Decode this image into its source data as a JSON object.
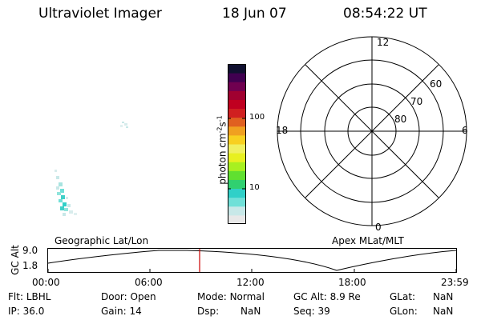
{
  "header": {
    "instrument": "Ultraviolet Imager",
    "date": "18 Jun 07",
    "time": "08:54:22 UT"
  },
  "colorbar": {
    "label": "photon cm",
    "label_exp1": "-2",
    "label_s": "s",
    "label_exp2": "-1",
    "ticks": [
      "100",
      "10"
    ],
    "colors": [
      "#e8e8e8",
      "#c8e8e8",
      "#70e0d8",
      "#30d0c8",
      "#30d070",
      "#60e030",
      "#a8f020",
      "#e8f020",
      "#f0f060",
      "#f8d020",
      "#f0a020",
      "#e06020",
      "#d02020",
      "#c00020",
      "#a00030",
      "#700050",
      "#400050",
      "#101030"
    ]
  },
  "polar_plot": {
    "mlt_labels": [
      "12",
      "18",
      "6",
      "0"
    ],
    "lat_labels": [
      "60",
      "70",
      "80"
    ]
  },
  "timeline": {
    "left_title": "Geographic Lat/Lon",
    "right_title": "Apex MLat/MLT",
    "axis_label": "GC Alt",
    "y_top": "9.0",
    "y_bottom": "1.8",
    "x_ticks": [
      "00:00",
      "06:00",
      "12:00",
      "18:00",
      "23:59"
    ],
    "marker_color": "#cc0000"
  },
  "info": {
    "flt_label": "Flt:",
    "flt_value": "LBHL",
    "door_label": "Door:",
    "door_value": "Open",
    "mode_label": "Mode:",
    "mode_value": "Normal",
    "gcalt_label": "GC Alt:",
    "gcalt_value": "8.9 Re",
    "glat_label": "GLat:",
    "glat_value": "NaN",
    "ip_label": "IP:",
    "ip_value": "36.0",
    "gain_label": "Gain:",
    "gain_value": "14",
    "dsp_label": "Dsp:",
    "dsp_value": "NaN",
    "seq_label": "Seq:",
    "seq_value": "39",
    "glon_label": "GLon:",
    "glon_value": "NaN"
  }
}
